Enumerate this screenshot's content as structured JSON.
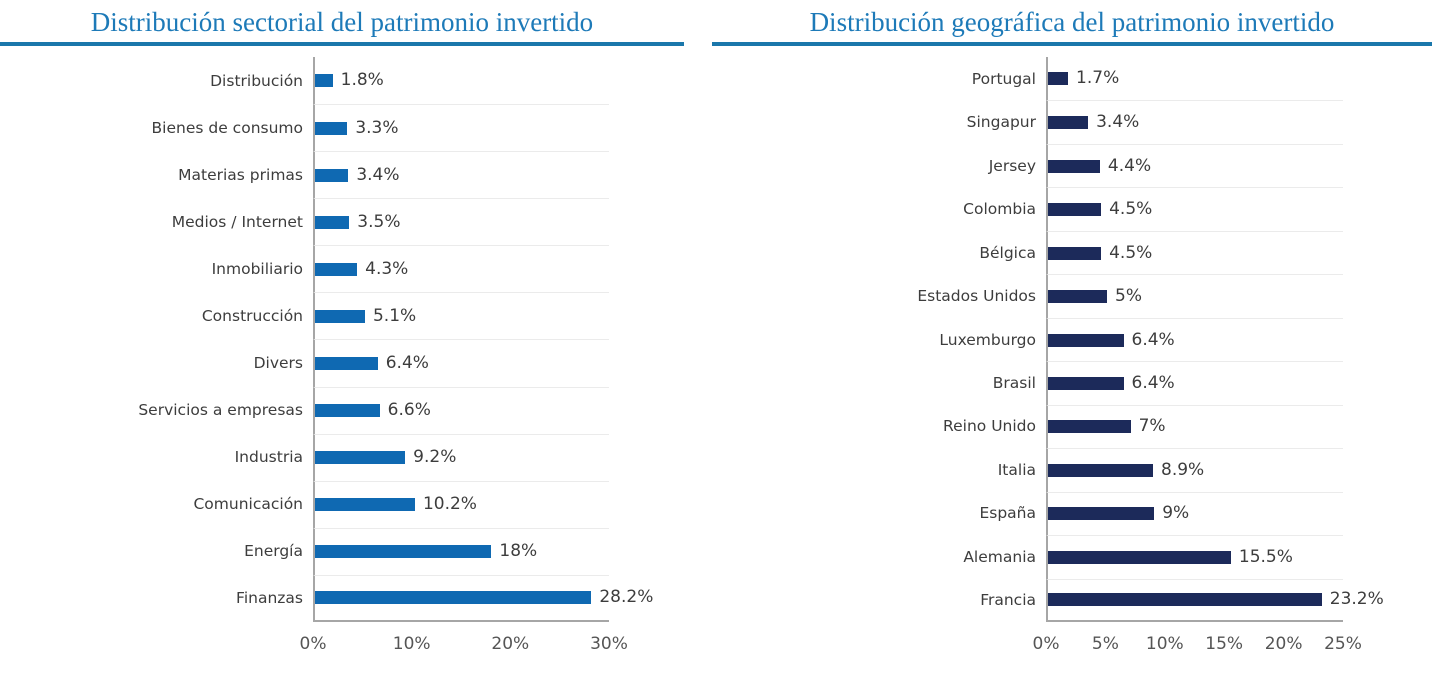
{
  "colors": {
    "title_text": "#1d7ab8",
    "title_rule": "#1a77ab",
    "sector_bar": "#0f69b2",
    "geo_bar": "#1c2a5a",
    "axis_line": "#a6a6a6",
    "gridline": "#ebebeb",
    "label_text": "#3d3d3d",
    "tick_text": "#555555"
  },
  "chart_data": [
    {
      "type": "bar",
      "orientation": "horizontal",
      "title": "Distribución sectorial del patrimonio invertido",
      "categories": [
        "Distribución",
        "Bienes de consumo",
        "Materias primas",
        "Medios / Internet",
        "Inmobiliario",
        "Construcción",
        "Divers",
        "Servicios a empresas",
        "Industria",
        "Comunicación",
        "Energía",
        "Finanzas"
      ],
      "values": [
        1.8,
        3.3,
        3.4,
        3.5,
        4.3,
        5.1,
        6.4,
        6.6,
        9.2,
        10.2,
        18,
        28.2
      ],
      "value_labels": [
        "1.8%",
        "3.3%",
        "3.4%",
        "3.5%",
        "4.3%",
        "5.1%",
        "6.4%",
        "6.6%",
        "9.2%",
        "10.2%",
        "18%",
        "28.2%"
      ],
      "x_ticks": [
        "0%",
        "10%",
        "20%",
        "30%"
      ],
      "xlim": [
        0,
        30
      ],
      "xlabel": "",
      "ylabel": "",
      "bar_color": "#0f69b2",
      "grid": "row-separators-only",
      "legend": "none",
      "data_labels": "outside-end"
    },
    {
      "type": "bar",
      "orientation": "horizontal",
      "title": "Distribución geográfica del patrimonio invertido",
      "categories": [
        "Portugal",
        "Singapur",
        "Jersey",
        "Colombia",
        "Bélgica",
        "Estados Unidos",
        "Luxemburgo",
        "Brasil",
        "Reino Unido",
        "Italia",
        "España",
        "Alemania",
        "Francia"
      ],
      "values": [
        1.7,
        3.4,
        4.4,
        4.5,
        4.5,
        5,
        6.4,
        6.4,
        7,
        8.9,
        9,
        15.5,
        23.2
      ],
      "value_labels": [
        "1.7%",
        "3.4%",
        "4.4%",
        "4.5%",
        "4.5%",
        "5%",
        "6.4%",
        "6.4%",
        "7%",
        "8.9%",
        "9%",
        "15.5%",
        "23.2%"
      ],
      "x_ticks": [
        "0%",
        "5%",
        "10%",
        "15%",
        "20%",
        "25%"
      ],
      "xlim": [
        0,
        25
      ],
      "xlabel": "",
      "ylabel": "",
      "bar_color": "#1c2a5a",
      "grid": "row-separators-only",
      "legend": "none",
      "data_labels": "outside-end"
    }
  ]
}
